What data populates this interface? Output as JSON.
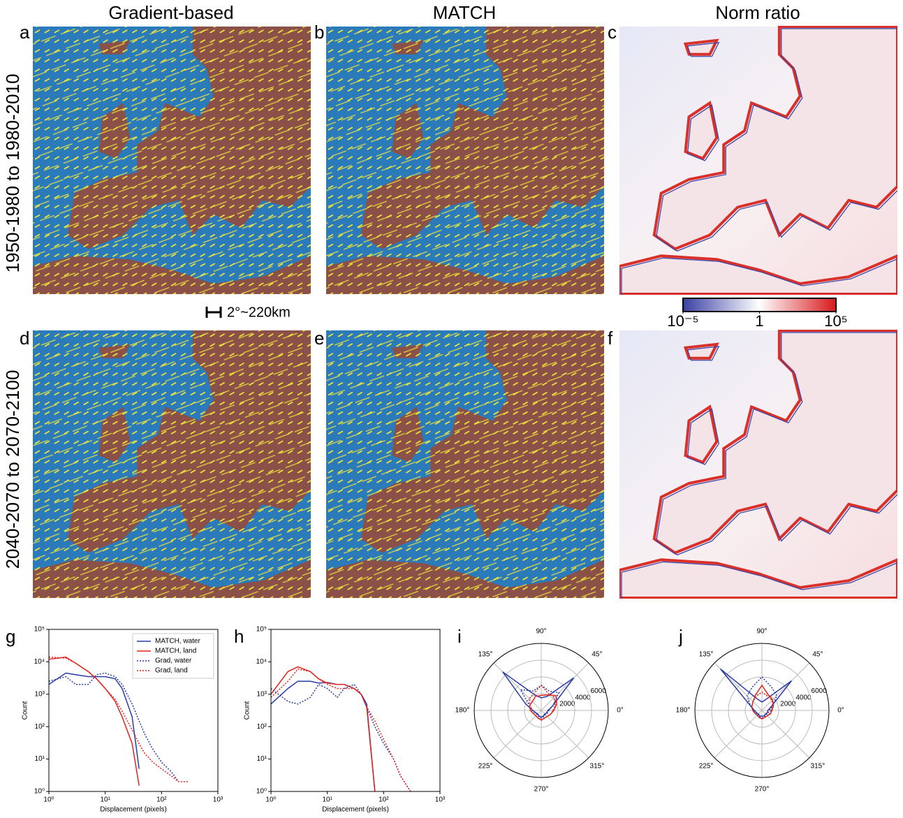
{
  "column_titles": [
    "Gradient-based",
    "MATCH",
    "Norm ratio"
  ],
  "row_labels": [
    "1950-1980 to 1980-2010",
    "2040-2070 to 2070-2100"
  ],
  "panel_labels": [
    "a",
    "b",
    "c",
    "d",
    "e",
    "f",
    "g",
    "h",
    "i",
    "j"
  ],
  "scale_bar": "2°~220km",
  "colorbar": {
    "lim": [
      1e-05,
      100000
    ],
    "log": true,
    "colors": [
      "#3a40a3",
      "#ffffff",
      "#d7191c"
    ],
    "ticks": [
      {
        "value": 1e-05,
        "label": "10⁻⁵"
      },
      1,
      {
        "value": 100000,
        "label": "10⁵"
      }
    ]
  },
  "chart_data": [
    {
      "type": "line",
      "log_x": true,
      "log_y": true,
      "legend": "upper right",
      "x_label": "Displacement (pixels)",
      "y_label": "Count",
      "xlim": [
        1,
        1000
      ],
      "ylim": [
        1,
        100000
      ],
      "xticks": [
        {
          "value": 1,
          "label": "10⁰"
        },
        {
          "value": 10,
          "label": "10¹"
        },
        {
          "value": 100,
          "label": "10²"
        },
        {
          "value": 1000,
          "label": "10³"
        }
      ],
      "yticks": [
        {
          "value": 1,
          "label": "10⁰"
        },
        {
          "value": 10,
          "label": "10¹"
        },
        {
          "value": 100,
          "label": "10²"
        },
        {
          "value": 1000,
          "label": "10³"
        },
        {
          "value": 10000,
          "label": "10⁴"
        },
        {
          "value": 100000,
          "label": "10⁵"
        }
      ],
      "x": [
        1,
        2,
        3,
        5,
        7,
        10,
        15,
        20,
        30,
        40,
        50,
        70,
        100,
        150,
        200,
        300
      ],
      "series": [
        {
          "name": "MATCH, water",
          "color": "#2a3da5",
          "linestyle": "solid",
          "values": [
            2000,
            4500,
            4000,
            3500,
            3500,
            3500,
            3000,
            1500,
            200,
            5,
            null,
            null,
            null,
            null,
            null,
            null
          ]
        },
        {
          "name": "MATCH, land",
          "color": "#e0261e",
          "linestyle": "solid",
          "values": [
            12000,
            14000,
            9000,
            5000,
            3000,
            1500,
            600,
            200,
            30,
            1.5,
            null,
            null,
            null,
            null,
            null,
            null
          ]
        },
        {
          "name": "Grad, water",
          "color": "#2a3da5",
          "linestyle": "dotted",
          "values": [
            2500,
            3500,
            2000,
            2000,
            4000,
            4500,
            3500,
            2000,
            500,
            150,
            60,
            20,
            8,
            4,
            2,
            null
          ]
        },
        {
          "name": "Grad, land",
          "color": "#e0261e",
          "linestyle": "dotted",
          "values": [
            14000,
            13000,
            9000,
            5000,
            3000,
            1500,
            700,
            300,
            80,
            30,
            15,
            8,
            5,
            3,
            2,
            2
          ]
        }
      ]
    },
    {
      "type": "line",
      "log_x": true,
      "log_y": true,
      "x_label": "Displacement (pixels)",
      "y_label": "Count",
      "xlim": [
        1,
        1000
      ],
      "ylim": [
        1,
        100000
      ],
      "xticks": [
        {
          "value": 1,
          "label": "10⁰"
        },
        {
          "value": 10,
          "label": "10¹"
        },
        {
          "value": 100,
          "label": "10²"
        },
        {
          "value": 1000,
          "label": "10³"
        }
      ],
      "yticks": [
        {
          "value": 1,
          "label": "10⁰"
        },
        {
          "value": 10,
          "label": "10¹"
        },
        {
          "value": 100,
          "label": "10²"
        },
        {
          "value": 1000,
          "label": "10³"
        },
        {
          "value": 10000,
          "label": "10⁴"
        },
        {
          "value": 100000,
          "label": "10⁵"
        }
      ],
      "x": [
        1,
        2,
        3,
        5,
        7,
        10,
        15,
        20,
        30,
        40,
        50,
        70,
        100,
        150,
        200,
        300
      ],
      "series": [
        {
          "color": "#2a3da5",
          "linestyle": "solid",
          "values": [
            500,
            1500,
            2500,
            2500,
            2200,
            2300,
            2000,
            2000,
            1500,
            1000,
            500,
            1,
            null,
            null,
            null,
            null
          ]
        },
        {
          "color": "#e0261e",
          "linestyle": "solid",
          "values": [
            1000,
            5000,
            7000,
            5000,
            3000,
            2200,
            2000,
            2000,
            1500,
            1000,
            400,
            1,
            null,
            null,
            null,
            null
          ]
        },
        {
          "color": "#2a3da5",
          "linestyle": "dotted",
          "values": [
            1500,
            600,
            500,
            800,
            2000,
            1500,
            800,
            1500,
            2000,
            1000,
            400,
            100,
            30,
            10,
            3,
            1
          ]
        },
        {
          "color": "#e0261e",
          "linestyle": "dotted",
          "values": [
            800,
            2500,
            6000,
            5000,
            3000,
            2000,
            1500,
            1500,
            1500,
            1000,
            400,
            150,
            40,
            10,
            3,
            1
          ]
        }
      ]
    },
    {
      "type": "polar",
      "rlim": [
        0,
        8000
      ],
      "rticks": [
        2000,
        4000,
        6000
      ],
      "thetaticks": [
        {
          "value": 0,
          "label": "0°"
        },
        {
          "value": 45,
          "label": "45°"
        },
        {
          "value": 90,
          "label": "90°"
        },
        {
          "value": 135,
          "label": "135°"
        },
        {
          "value": 180,
          "label": "180°"
        },
        {
          "value": 225,
          "label": "225°"
        },
        {
          "value": 270,
          "label": "270°"
        },
        {
          "value": 315,
          "label": "315°"
        }
      ],
      "x": [
        0,
        22.5,
        45,
        67.5,
        90,
        112.5,
        135,
        157.5,
        180,
        202.5,
        225,
        247.5,
        270,
        292.5,
        315,
        337.5
      ],
      "series": [
        {
          "color": "#2a3da5",
          "linestyle": "solid",
          "values": [
            800,
            1500,
            5500,
            1800,
            1500,
            2000,
            6500,
            2000,
            1000,
            700,
            600,
            700,
            800,
            700,
            600,
            700
          ]
        },
        {
          "color": "#e0261e",
          "linestyle": "solid",
          "values": [
            1500,
            2000,
            2500,
            2000,
            1800,
            1800,
            1500,
            1500,
            1300,
            1000,
            900,
            1000,
            1100,
            1000,
            1000,
            1200
          ]
        },
        {
          "color": "#2a3da5",
          "linestyle": "dotted",
          "values": [
            900,
            1500,
            3000,
            2500,
            3000,
            2500,
            3500,
            1500,
            1000,
            800,
            700,
            800,
            900,
            800,
            700,
            800
          ]
        },
        {
          "color": "#e0261e",
          "linestyle": "dotted",
          "values": [
            1400,
            1800,
            2200,
            2200,
            3000,
            2200,
            2000,
            1500,
            1200,
            1000,
            900,
            1000,
            1200,
            1000,
            1000,
            1200
          ]
        }
      ]
    },
    {
      "type": "polar",
      "rlim": [
        0,
        8000
      ],
      "rticks": [
        2000,
        4000,
        6000
      ],
      "thetaticks": [
        {
          "value": 0,
          "label": "0°"
        },
        {
          "value": 45,
          "label": "45°"
        },
        {
          "value": 90,
          "label": "90°"
        },
        {
          "value": 135,
          "label": "135°"
        },
        {
          "value": 180,
          "label": "180°"
        },
        {
          "value": 225,
          "label": "225°"
        },
        {
          "value": 270,
          "label": "270°"
        },
        {
          "value": 315,
          "label": "315°"
        }
      ],
      "x": [
        0,
        22.5,
        45,
        67.5,
        90,
        112.5,
        135,
        157.5,
        180,
        202.5,
        225,
        247.5,
        270,
        292.5,
        315,
        337.5
      ],
      "series": [
        {
          "color": "#2a3da5",
          "linestyle": "solid",
          "values": [
            700,
            1200,
            5000,
            1500,
            1000,
            1500,
            7000,
            1500,
            900,
            700,
            600,
            700,
            700,
            700,
            600,
            700
          ]
        },
        {
          "color": "#e0261e",
          "linestyle": "solid",
          "values": [
            1200,
            1500,
            1800,
            2000,
            3000,
            2000,
            1500,
            1300,
            1100,
            900,
            800,
            900,
            1000,
            900,
            900,
            1100
          ]
        },
        {
          "color": "#2a3da5",
          "linestyle": "dotted",
          "values": [
            900,
            1400,
            2500,
            3000,
            4000,
            3000,
            2500,
            1500,
            1000,
            800,
            700,
            800,
            900,
            800,
            700,
            800
          ]
        },
        {
          "color": "#e0261e",
          "linestyle": "dotted",
          "values": [
            1100,
            1400,
            1700,
            1800,
            2200,
            1800,
            1500,
            1300,
            1100,
            900,
            800,
            900,
            1000,
            900,
            900,
            1000
          ]
        }
      ]
    }
  ]
}
